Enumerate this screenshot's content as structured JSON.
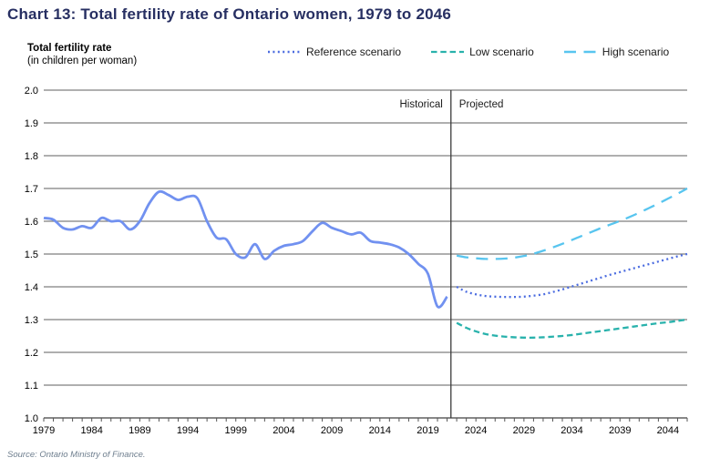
{
  "title": "Chart 13: Total fertility rate of Ontario women, 1979 to 2046",
  "y_axis_unit": {
    "line1": "Total fertility rate",
    "line2": "(in children per woman)"
  },
  "legend": [
    {
      "label": "Reference scenario",
      "color": "#4b6ce0",
      "style": "dotted"
    },
    {
      "label": "Low scenario",
      "color": "#29b2ac",
      "style": "short-dash"
    },
    {
      "label": "High scenario",
      "color": "#58c5ef",
      "style": "long-dash"
    }
  ],
  "source": "Source: Ontario Ministry of Finance.",
  "chart_data": {
    "type": "line",
    "title": "Chart 13: Total fertility rate of Ontario women, 1979 to 2046",
    "ylabel": "Total fertility rate (in children per woman)",
    "xlabel": "",
    "x_range": [
      1979,
      2046
    ],
    "ylim": [
      1.0,
      2.0
    ],
    "y_ticks": [
      1.0,
      1.1,
      1.2,
      1.3,
      1.4,
      1.5,
      1.6,
      1.7,
      1.8,
      1.9,
      2.0
    ],
    "x_tick_labels": [
      1979,
      1984,
      1989,
      1994,
      1999,
      2004,
      2009,
      2014,
      2019,
      2024,
      2029,
      2034,
      2039,
      2044
    ],
    "x_minor_tick_every_year": true,
    "grid": "horizontal",
    "gridline_color": "#7f7f7f",
    "axis_color": "#555555",
    "divider_year": 2021.4,
    "divider_color": "#3a3a3a",
    "regions": {
      "left_label": "Historical",
      "right_label": "Projected"
    },
    "legend_position": "top",
    "series": [
      {
        "name": "Historical",
        "color": "#7191f0",
        "dash": "solid",
        "start_year": 1979,
        "values": [
          1.61,
          1.605,
          1.58,
          1.575,
          1.585,
          1.58,
          1.61,
          1.6,
          1.6,
          1.575,
          1.6,
          1.655,
          1.69,
          1.68,
          1.665,
          1.675,
          1.67,
          1.6,
          1.55,
          1.545,
          1.5,
          1.49,
          1.53,
          1.485,
          1.51,
          1.525,
          1.53,
          1.54,
          1.57,
          1.595,
          1.58,
          1.57,
          1.56,
          1.565,
          1.54,
          1.535,
          1.53,
          1.52,
          1.5,
          1.47,
          1.44,
          1.34,
          1.37
        ]
      },
      {
        "name": "Reference scenario",
        "color": "#4b6ce0",
        "dash": "dotted",
        "start_year": 2022,
        "values": [
          1.4,
          1.385,
          1.377,
          1.372,
          1.37,
          1.369,
          1.369,
          1.37,
          1.373,
          1.377,
          1.384,
          1.392,
          1.401,
          1.41,
          1.419,
          1.428,
          1.437,
          1.445,
          1.453,
          1.461,
          1.469,
          1.477,
          1.485,
          1.493,
          1.5
        ]
      },
      {
        "name": "Low scenario",
        "color": "#29b2ac",
        "dash": "short-dash",
        "start_year": 2022,
        "values": [
          1.29,
          1.275,
          1.264,
          1.256,
          1.251,
          1.248,
          1.246,
          1.245,
          1.245,
          1.246,
          1.248,
          1.25,
          1.253,
          1.257,
          1.261,
          1.265,
          1.269,
          1.273,
          1.277,
          1.281,
          1.285,
          1.289,
          1.292,
          1.296,
          1.3
        ]
      },
      {
        "name": "High scenario",
        "color": "#58c5ef",
        "dash": "long-dash",
        "start_year": 2022,
        "values": [
          1.495,
          1.49,
          1.487,
          1.485,
          1.485,
          1.486,
          1.489,
          1.494,
          1.501,
          1.51,
          1.52,
          1.531,
          1.543,
          1.555,
          1.567,
          1.579,
          1.59,
          1.601,
          1.613,
          1.626,
          1.64,
          1.654,
          1.669,
          1.684,
          1.7
        ]
      }
    ]
  }
}
